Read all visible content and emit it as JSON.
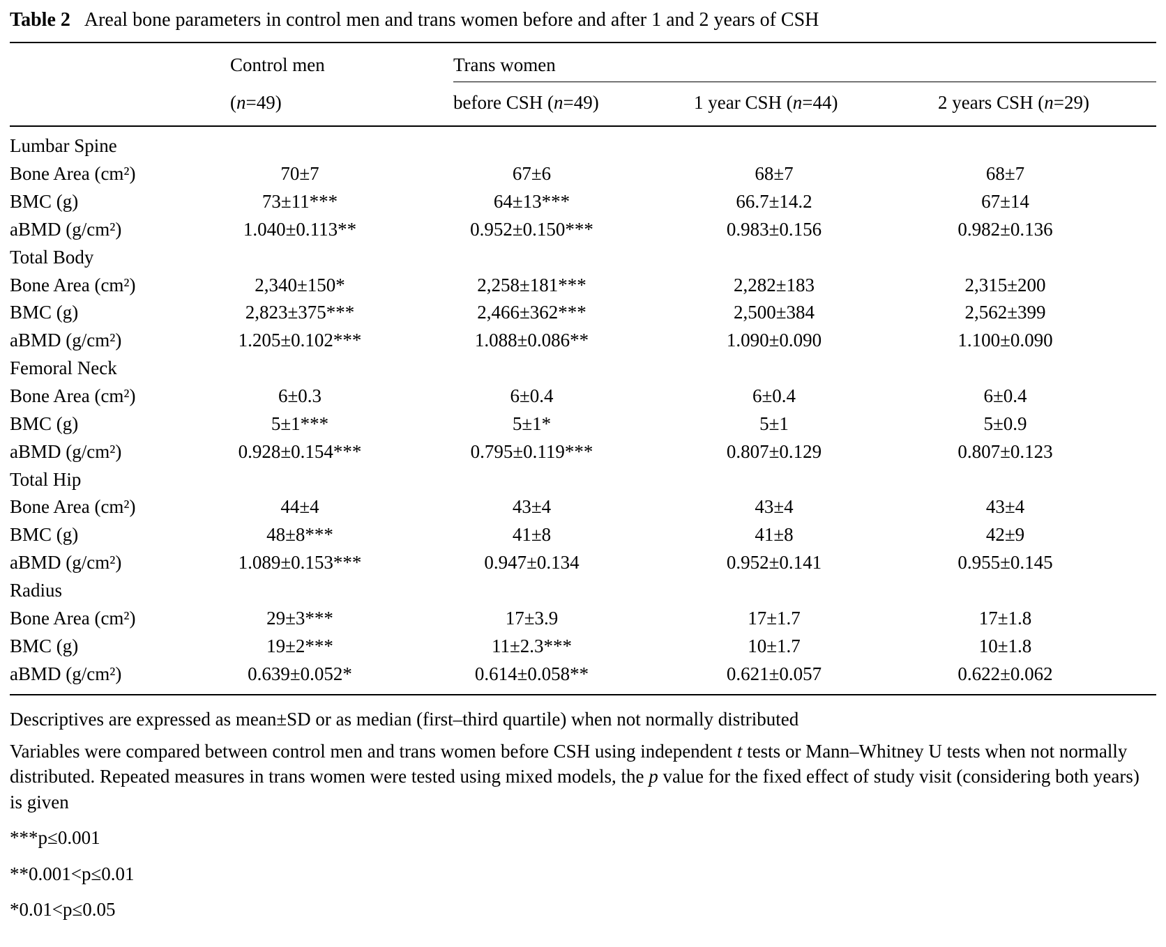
{
  "title": {
    "label": "Table 2",
    "text": "Areal bone parameters in control men and trans women before and after 1 and 2 years of CSH"
  },
  "header": {
    "group_control": "Control men",
    "group_trans": "Trans women",
    "sub_control": "([i]n[/i]=49)",
    "sub_before": "before CSH ([i]n[/i]=49)",
    "sub_year1": "1 year CSH ([i]n[/i]=44)",
    "sub_year2": "2 years CSH ([i]n[/i]=29)"
  },
  "sections": [
    {
      "name": "Lumbar Spine",
      "rows": [
        {
          "label": "Bone Area (cm²)",
          "values": [
            "70±7",
            "67±6",
            "68±7",
            "68±7"
          ]
        },
        {
          "label": "BMC (g)",
          "values": [
            "73±11***",
            "64±13***",
            "66.7±14.2",
            "67±14"
          ]
        },
        {
          "label": "aBMD (g/cm²)",
          "values": [
            "1.040±0.113**",
            "0.952±0.150***",
            "0.983±0.156",
            "0.982±0.136"
          ]
        }
      ]
    },
    {
      "name": "Total Body",
      "rows": [
        {
          "label": "Bone Area (cm²)",
          "values": [
            "2,340±150*",
            "2,258±181***",
            "2,282±183",
            "2,315±200"
          ]
        },
        {
          "label": "BMC (g)",
          "values": [
            "2,823±375***",
            "2,466±362***",
            "2,500±384",
            "2,562±399"
          ]
        },
        {
          "label": "aBMD (g/cm²)",
          "values": [
            "1.205±0.102***",
            "1.088±0.086**",
            "1.090±0.090",
            "1.100±0.090"
          ]
        }
      ]
    },
    {
      "name": "Femoral Neck",
      "rows": [
        {
          "label": "Bone Area (cm²)",
          "values": [
            "6±0.3",
            "6±0.4",
            "6±0.4",
            "6±0.4"
          ]
        },
        {
          "label": "BMC (g)",
          "values": [
            "5±1***",
            "5±1*",
            "5±1",
            "5±0.9"
          ]
        },
        {
          "label": "aBMD (g/cm²)",
          "values": [
            "0.928±0.154***",
            "0.795±0.119***",
            "0.807±0.129",
            "0.807±0.123"
          ]
        }
      ]
    },
    {
      "name": "Total Hip",
      "rows": [
        {
          "label": "Bone Area (cm²)",
          "values": [
            "44±4",
            "43±4",
            "43±4",
            "43±4"
          ]
        },
        {
          "label": "BMC (g)",
          "values": [
            "48±8***",
            "41±8",
            "41±8",
            "42±9"
          ]
        },
        {
          "label": "aBMD (g/cm²)",
          "values": [
            "1.089±0.153***",
            "0.947±0.134",
            "0.952±0.141",
            "0.955±0.145"
          ]
        }
      ]
    },
    {
      "name": "Radius",
      "rows": [
        {
          "label": "Bone Area (cm²)",
          "values": [
            "29±3***",
            "17±3.9",
            "17±1.7",
            "17±1.8"
          ]
        },
        {
          "label": "BMC (g)",
          "values": [
            "19±2***",
            "11±2.3***",
            "10±1.7",
            "10±1.8"
          ]
        },
        {
          "label": "aBMD (g/cm²)",
          "values": [
            "0.639±0.052*",
            "0.614±0.058**",
            "0.621±0.057",
            "0.622±0.062"
          ]
        }
      ]
    }
  ],
  "footnotes": [
    "Descriptives are expressed as mean±SD or as median (first–third quartile) when not normally distributed",
    "Variables were compared between control men and trans women before CSH using independent [i]t[/i] tests or Mann–Whitney U tests when not normally distributed. Repeated measures in trans women were tested using mixed models, the [i]p[/i] value for the fixed effect of study visit (considering both years) is given",
    "***p≤0.001",
    "**0.001<p≤0.01",
    "*0.01<p≤0.05"
  ]
}
